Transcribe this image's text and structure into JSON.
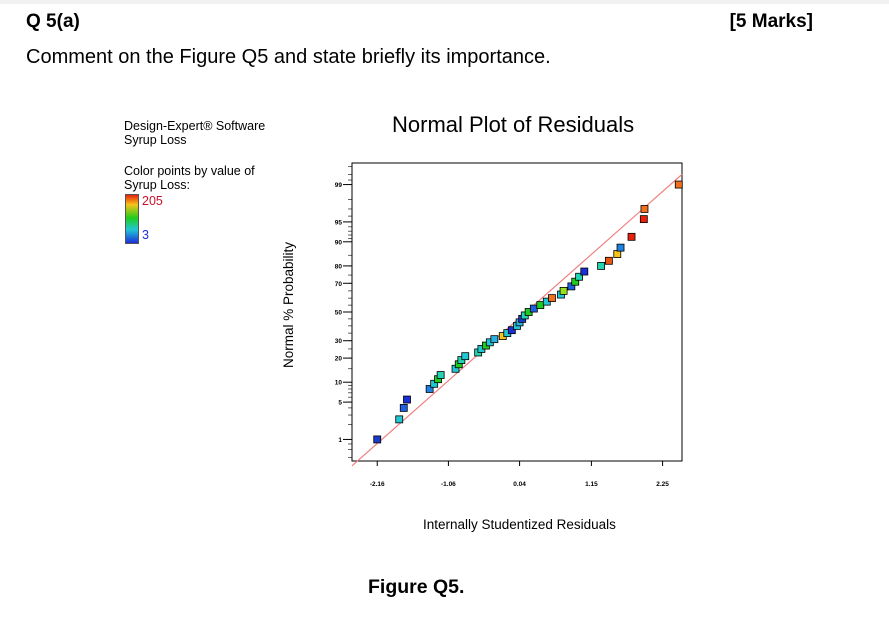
{
  "question": {
    "number": "Q 5(a)",
    "marks": "[5 Marks]",
    "text": "Comment on the Figure Q5 and state briefly its importance."
  },
  "software": {
    "name": "Design-Expert® Software",
    "response": "Syrup Loss",
    "color_by_line1": "Color points by value of",
    "color_by_line2": "Syrup Loss:",
    "color_max": "205",
    "color_min": "3",
    "colors": {
      "high": "#e8210d",
      "low": "#1b2fd8",
      "fit_line": "#f08080"
    }
  },
  "figure_caption": "Figure Q5.",
  "chart_data": {
    "type": "scatter",
    "title": "Normal Plot of Residuals",
    "xlabel": "Internally Studentized Residuals",
    "ylabel": "Normal % Probability",
    "x_ticks": [
      -2.16,
      -1.06,
      0.04,
      1.15,
      2.25
    ],
    "y_ticks": [
      1,
      5,
      10,
      20,
      30,
      50,
      70,
      80,
      90,
      95,
      99
    ],
    "y_scale": "normal-probability",
    "xlim": [
      -2.55,
      2.55
    ],
    "fit_line": [
      [
        -2.55,
        0.25
      ],
      [
        2.55,
        99.4
      ]
    ],
    "points": [
      {
        "x": -2.16,
        "y": 1.0,
        "c": "#1b3cc8"
      },
      {
        "x": -1.82,
        "y": 2.5,
        "c": "#22c7d4"
      },
      {
        "x": -1.75,
        "y": 4.0,
        "c": "#2060e0"
      },
      {
        "x": -1.7,
        "y": 5.5,
        "c": "#1b2fd8"
      },
      {
        "x": -1.35,
        "y": 8.0,
        "c": "#2080e0"
      },
      {
        "x": -1.28,
        "y": 9.5,
        "c": "#22c7d4"
      },
      {
        "x": -1.22,
        "y": 11.0,
        "c": "#1fcc1f"
      },
      {
        "x": -1.18,
        "y": 12.5,
        "c": "#22d4b0"
      },
      {
        "x": -0.95,
        "y": 15.0,
        "c": "#22c7d4"
      },
      {
        "x": -0.9,
        "y": 17.0,
        "c": "#1fcc1f"
      },
      {
        "x": -0.86,
        "y": 19.0,
        "c": "#22d4b0"
      },
      {
        "x": -0.8,
        "y": 21.0,
        "c": "#22c7d4"
      },
      {
        "x": -0.6,
        "y": 23.0,
        "c": "#22d4b0"
      },
      {
        "x": -0.55,
        "y": 25.0,
        "c": "#22c7d4"
      },
      {
        "x": -0.48,
        "y": 27.0,
        "c": "#1fcc1f"
      },
      {
        "x": -0.42,
        "y": 29.0,
        "c": "#22c7d4"
      },
      {
        "x": -0.35,
        "y": 31.0,
        "c": "#2ab0e0"
      },
      {
        "x": -0.22,
        "y": 33.0,
        "c": "#f7c41a"
      },
      {
        "x": -0.15,
        "y": 35.0,
        "c": "#22c7d4"
      },
      {
        "x": -0.08,
        "y": 37.0,
        "c": "#1b2fd8"
      },
      {
        "x": 0.0,
        "y": 40.0,
        "c": "#22c7d4"
      },
      {
        "x": 0.04,
        "y": 42.5,
        "c": "#2ab0e0"
      },
      {
        "x": 0.08,
        "y": 45.0,
        "c": "#1b3cc8"
      },
      {
        "x": 0.12,
        "y": 47.5,
        "c": "#22d4b0"
      },
      {
        "x": 0.18,
        "y": 50.0,
        "c": "#1fcc1f"
      },
      {
        "x": 0.26,
        "y": 52.5,
        "c": "#2060e0"
      },
      {
        "x": 0.36,
        "y": 55.0,
        "c": "#1fcc1f"
      },
      {
        "x": 0.46,
        "y": 57.5,
        "c": "#22c7d4"
      },
      {
        "x": 0.54,
        "y": 60.0,
        "c": "#f07020"
      },
      {
        "x": 0.68,
        "y": 62.5,
        "c": "#22c7d4"
      },
      {
        "x": 0.72,
        "y": 65.0,
        "c": "#9ae01a"
      },
      {
        "x": 0.84,
        "y": 68.0,
        "c": "#2060e0"
      },
      {
        "x": 0.9,
        "y": 71.0,
        "c": "#1fcc1f"
      },
      {
        "x": 0.96,
        "y": 74.0,
        "c": "#22d4b0"
      },
      {
        "x": 1.04,
        "y": 77.0,
        "c": "#1b2fd8"
      },
      {
        "x": 1.3,
        "y": 80.0,
        "c": "#22d4b0"
      },
      {
        "x": 1.42,
        "y": 82.5,
        "c": "#e8560d"
      },
      {
        "x": 1.55,
        "y": 85.5,
        "c": "#f7c41a"
      },
      {
        "x": 1.6,
        "y": 88.0,
        "c": "#2080e0"
      },
      {
        "x": 1.77,
        "y": 91.5,
        "c": "#e8210d"
      },
      {
        "x": 1.96,
        "y": 95.5,
        "c": "#e8210d"
      },
      {
        "x": 1.97,
        "y": 97.0,
        "c": "#f07020"
      },
      {
        "x": 2.5,
        "y": 99.0,
        "c": "#f07020"
      }
    ]
  }
}
